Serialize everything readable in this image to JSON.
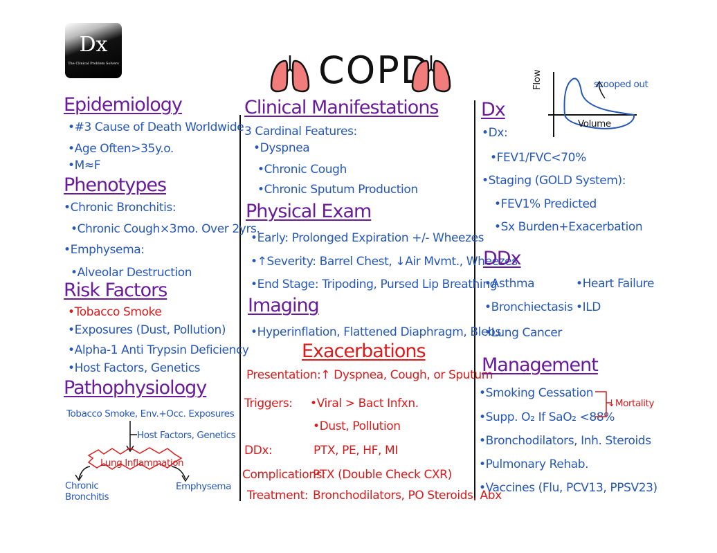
{
  "logo": {
    "mark": "Dx",
    "subtitle": "The Clinical Problem Solvers"
  },
  "title": "COPD",
  "epidemiology": {
    "heading": "Epidemiology",
    "items": [
      "•#3 Cause of Death Worldwide",
      "•Age Often>35y.o.",
      "•M≈F"
    ]
  },
  "phenotypes": {
    "heading": "Phenotypes",
    "items": [
      "•Chronic Bronchitis:",
      "•Chronic Cough×3mo. Over 2yrs.",
      "•Emphysema:",
      "•Alveolar Destruction"
    ]
  },
  "risk_factors": {
    "heading": "Risk Factors",
    "items": [
      "•Tobacco Smoke",
      "•Exposures (Dust, Pollution)",
      "•Alpha-1 Anti Trypsin Deficiency",
      "•Host Factors, Genetics"
    ]
  },
  "pathophysiology": {
    "heading": "Pathophysiology",
    "top": "Tobacco Smoke, Env.+Occ. Exposures",
    "host": "Host Factors, Genetics",
    "center": "Lung Inflammation",
    "left": [
      "Chronic",
      "Bronchitis"
    ],
    "right": "Emphysema"
  },
  "clinical": {
    "heading": "Clinical Manifestations",
    "intro": "3 Cardinal Features:",
    "items": [
      "•Dyspnea",
      "•Chronic Cough",
      "•Chronic Sputum Production"
    ]
  },
  "physical_exam": {
    "heading": "Physical Exam",
    "items": [
      "•Early: Prolonged Expiration +/- Wheezes",
      "•↑Severity: Barrel Chest, ↓Air Mvmt., Wheezes",
      "•End Stage: Tripoding, Pursed Lip Breathing"
    ]
  },
  "imaging": {
    "heading": "Imaging",
    "items": [
      "•Hyperinflation, Flattened Diaphragm, Blebs"
    ]
  },
  "exacerbations": {
    "heading": "Exacerbations",
    "presentation": "Presentation:↑ Dyspnea, Cough, or Sputum",
    "triggers_label": "Triggers:",
    "triggers": [
      "•Viral > Bact Infxn.",
      "•Dust, Pollution"
    ],
    "ddx_label": "DDx:",
    "ddx": "PTX, PE, HF, MI",
    "complications_label": "Complications:",
    "complications": "PTX (Double Check CXR)",
    "treatment_label": "Treatment:",
    "treatment": "Bronchodilators, PO Steroids, Abx"
  },
  "graph": {
    "y_label": "Flow",
    "x_label": "Volume",
    "note": "scooped out"
  },
  "dx": {
    "heading": "Dx",
    "items": [
      "•Dx:",
      "•FEV1/FVC<70%",
      "•Staging (GOLD System):",
      "•FEV1% Predicted",
      "•Sx Burden+Exacerbation"
    ]
  },
  "ddx": {
    "heading": "DDx",
    "items": [
      "•Asthma",
      "•Heart Failure",
      "•Bronchiectasis",
      "•ILD",
      "•Lung Cancer"
    ]
  },
  "management": {
    "heading": "Management",
    "items": [
      "•Smoking Cessation",
      "•Supp. O₂ If SaO₂ <88%",
      "•Bronchodilators, Inh. Steroids",
      "•Pulmonary Rehab.",
      "•Vaccines (Flu, PCV13, PPSV23)"
    ],
    "mortality": "↓Mortality"
  },
  "colors": {
    "heading": "#6a1b9a",
    "text": "#2557b8",
    "red": "#d81b1b",
    "lung": "#f07c7c"
  }
}
